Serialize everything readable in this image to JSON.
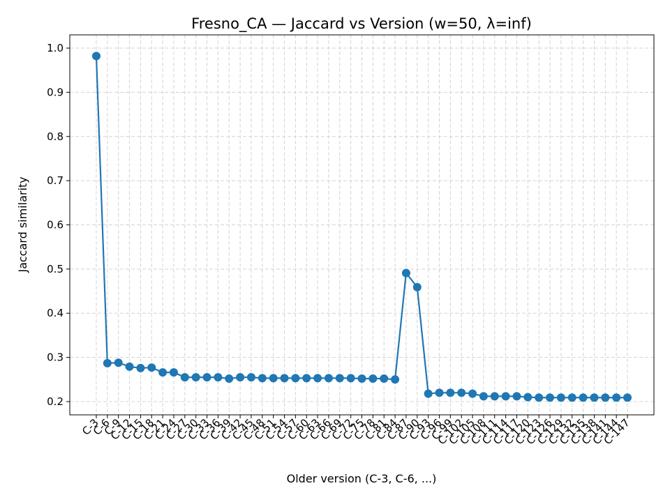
{
  "chart_data": {
    "type": "line",
    "title": "Fresno_CA — Jaccard vs Version (w=50, λ=inf)",
    "xlabel": "Older version (C-3, C-6, ...)",
    "ylabel": "Jaccard similarity",
    "ylim": [
      0.17,
      1.03
    ],
    "yticks": [
      "0.2",
      "0.3",
      "0.4",
      "0.5",
      "0.6",
      "0.7",
      "0.8",
      "0.9",
      "1.0"
    ],
    "grid": true,
    "categories": [
      "C-3",
      "C-6",
      "C-9",
      "C-12",
      "C-15",
      "C-18",
      "C-21",
      "C-24",
      "C-27",
      "C-30",
      "C-33",
      "C-36",
      "C-39",
      "C-42",
      "C-45",
      "C-48",
      "C-51",
      "C-54",
      "C-57",
      "C-60",
      "C-63",
      "C-66",
      "C-69",
      "C-72",
      "C-75",
      "C-78",
      "C-81",
      "C-84",
      "C-87",
      "C-90",
      "C-93",
      "C-96",
      "C-99",
      "C-102",
      "C-105",
      "C-108",
      "C-111",
      "C-114",
      "C-117",
      "C-120",
      "C-123",
      "C-126",
      "C-129",
      "C-132",
      "C-135",
      "C-138",
      "C-141",
      "C-144",
      "C-147"
    ],
    "series": [
      {
        "color": "#1f77b4",
        "values": [
          0.982,
          0.287,
          0.288,
          0.279,
          0.276,
          0.277,
          0.266,
          0.266,
          0.255,
          0.255,
          0.255,
          0.255,
          0.252,
          0.255,
          0.255,
          0.253,
          0.253,
          0.253,
          0.253,
          0.253,
          0.253,
          0.253,
          0.253,
          0.253,
          0.252,
          0.252,
          0.252,
          0.25,
          0.491,
          0.459,
          0.218,
          0.22,
          0.22,
          0.22,
          0.218,
          0.212,
          0.212,
          0.212,
          0.212,
          0.21,
          0.209,
          0.209,
          0.209,
          0.209,
          0.209,
          0.209,
          0.209,
          0.209,
          0.209
        ]
      }
    ]
  }
}
